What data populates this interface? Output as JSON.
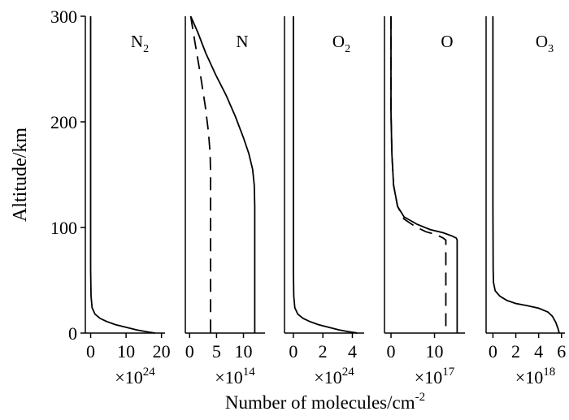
{
  "chart_data": {
    "type": "line",
    "ylabel": "Altitude/km",
    "xlabel": "Number of molecules/cm",
    "xlabel_sup": "-2",
    "ylim": [
      0,
      300
    ],
    "yticks": [
      "0",
      "100",
      "200",
      "300"
    ],
    "grid": false,
    "panels": [
      {
        "label": "N",
        "label_sub": "2",
        "multiplier": "×10",
        "multiplier_exp": "24",
        "xlim": [
          -1.5,
          21
        ],
        "xticks": [
          "0",
          "10",
          "20"
        ],
        "series": [
          {
            "style": "solid",
            "points": [
              [
                0,
                300
              ],
              [
                0,
                60
              ],
              [
                0.1,
                35
              ],
              [
                0.4,
                24
              ],
              [
                1.2,
                18
              ],
              [
                2.6,
                14
              ],
              [
                4.5,
                11
              ],
              [
                7,
                8
              ],
              [
                10,
                5.5
              ],
              [
                13,
                3
              ],
              [
                15.5,
                1.5
              ],
              [
                17.5,
                0.4
              ],
              [
                18.2,
                0
              ]
            ]
          }
        ]
      },
      {
        "label": "N",
        "label_sub": "",
        "multiplier": "×10",
        "multiplier_exp": "14",
        "xlim": [
          -0.8,
          14
        ],
        "xticks": [
          "0",
          "5",
          "10"
        ],
        "series": [
          {
            "style": "solid",
            "points": [
              [
                0.2,
                300
              ],
              [
                1.5,
                285
              ],
              [
                3,
                265
              ],
              [
                4.8,
                245
              ],
              [
                6.8,
                225
              ],
              [
                8.5,
                205
              ],
              [
                10,
                185
              ],
              [
                11,
                170
              ],
              [
                11.7,
                155
              ],
              [
                12,
                140
              ],
              [
                12.1,
                120
              ],
              [
                12.1,
                0
              ]
            ]
          },
          {
            "style": "dashed",
            "points": [
              [
                0.2,
                300
              ],
              [
                1,
                275
              ],
              [
                2,
                245
              ],
              [
                2.9,
                215
              ],
              [
                3.5,
                190
              ],
              [
                3.8,
                170
              ],
              [
                3.9,
                150
              ],
              [
                3.9,
                0
              ]
            ]
          }
        ]
      },
      {
        "label": "O",
        "label_sub": "2",
        "multiplier": "×10",
        "multiplier_exp": "24",
        "xlim": [
          -0.6,
          4.8
        ],
        "xticks": [
          "0",
          "2",
          "4"
        ],
        "series": [
          {
            "style": "solid",
            "points": [
              [
                0,
                300
              ],
              [
                0,
                60
              ],
              [
                0.03,
                35
              ],
              [
                0.1,
                24
              ],
              [
                0.3,
                18
              ],
              [
                0.65,
                14
              ],
              [
                1.1,
                11
              ],
              [
                1.7,
                8
              ],
              [
                2.4,
                5.5
              ],
              [
                3.1,
                3
              ],
              [
                3.7,
                1.5
              ],
              [
                4.2,
                0.4
              ],
              [
                4.35,
                0
              ]
            ]
          }
        ]
      },
      {
        "label": "O",
        "label_sub": "",
        "multiplier": "×10",
        "multiplier_exp": "17",
        "xlim": [
          -1.5,
          17
        ],
        "xticks": [
          "0",
          "10"
        ],
        "series": [
          {
            "style": "solid",
            "points": [
              [
                0,
                300
              ],
              [
                0,
                210
              ],
              [
                0.2,
                170
              ],
              [
                0.6,
                140
              ],
              [
                1.5,
                120
              ],
              [
                3,
                110
              ],
              [
                6,
                103
              ],
              [
                9,
                98
              ],
              [
                12,
                95
              ],
              [
                14,
                92
              ],
              [
                15,
                90
              ],
              [
                15.2,
                88
              ],
              [
                15.2,
                0
              ]
            ]
          },
          {
            "style": "dashed",
            "points": [
              [
                0,
                300
              ],
              [
                0,
                210
              ],
              [
                0.2,
                170
              ],
              [
                0.6,
                140
              ],
              [
                1.5,
                120
              ],
              [
                3,
                108
              ],
              [
                5.5,
                101
              ],
              [
                8,
                96
              ],
              [
                10.5,
                93
              ],
              [
                12,
                90
              ],
              [
                12.6,
                88
              ],
              [
                12.6,
                0
              ]
            ]
          }
        ]
      },
      {
        "label": "O",
        "label_sub": "3",
        "multiplier": "×10",
        "multiplier_exp": "18",
        "xlim": [
          -0.6,
          6.3
        ],
        "xticks": [
          "0",
          "2",
          "4",
          "6"
        ],
        "series": [
          {
            "style": "solid",
            "points": [
              [
                0,
                300
              ],
              [
                0,
                120
              ],
              [
                0.02,
                60
              ],
              [
                0.05,
                48
              ],
              [
                0.2,
                40
              ],
              [
                0.6,
                35
              ],
              [
                1.2,
                31
              ],
              [
                2,
                28
              ],
              [
                3,
                26
              ],
              [
                4,
                23.5
              ],
              [
                4.8,
                20
              ],
              [
                5.2,
                16
              ],
              [
                5.5,
                10
              ],
              [
                5.7,
                4
              ],
              [
                5.8,
                0
              ]
            ]
          }
        ]
      }
    ]
  }
}
